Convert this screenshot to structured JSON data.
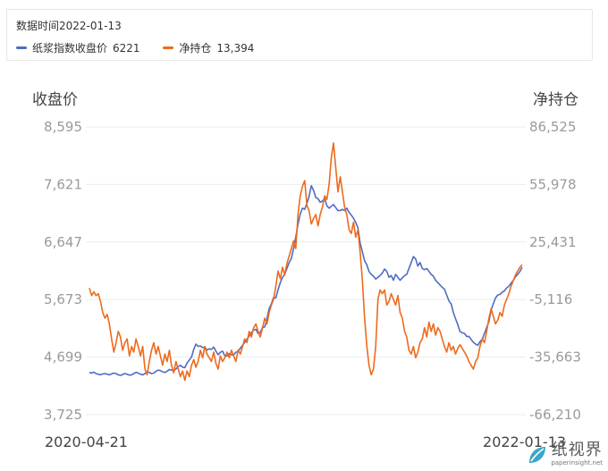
{
  "legend": {
    "date_text": "数据时间2022-01-13",
    "items": [
      {
        "label": "纸浆指数收盘价",
        "value": "6221",
        "color": "#4f6cc2"
      },
      {
        "label": "净持仓",
        "value": "13,394",
        "color": "#ee6a1c"
      }
    ]
  },
  "chart_data": {
    "type": "line",
    "left_axis": {
      "title": "收盘价",
      "ticks": [
        "8,595",
        "7,621",
        "6,647",
        "5,673",
        "4,699",
        "3,725"
      ],
      "min": 3725,
      "max": 8595
    },
    "right_axis": {
      "title": "净持仓",
      "ticks": [
        "86,525",
        "55,978",
        "25,431",
        "-5,116",
        "-35,663",
        "-66,210"
      ],
      "min": -66210,
      "max": 86525
    },
    "x_start_label": "2020-04-21",
    "x_end_label": "2022-01-13",
    "grid": true,
    "series": [
      {
        "name": "纸浆指数收盘价",
        "axis": "left",
        "color": "#4f6cc2",
        "values": [
          4440,
          4430,
          4445,
          4420,
          4410,
          4400,
          4415,
          4420,
          4410,
          4400,
          4415,
          4430,
          4420,
          4400,
          4390,
          4405,
          4420,
          4410,
          4395,
          4400,
          4420,
          4440,
          4430,
          4410,
          4400,
          4420,
          4450,
          4440,
          4420,
          4430,
          4460,
          4480,
          4470,
          4450,
          4440,
          4460,
          4490,
          4480,
          4470,
          4500,
          4540,
          4560,
          4530,
          4520,
          4600,
          4650,
          4700,
          4830,
          4920,
          4880,
          4890,
          4860,
          4870,
          4820,
          4840,
          4830,
          4870,
          4800,
          4740,
          4780,
          4800,
          4720,
          4720,
          4760,
          4740,
          4740,
          4780,
          4800,
          4850,
          4900,
          4950,
          5000,
          5060,
          5110,
          5160,
          5170,
          5100,
          5120,
          5200,
          5210,
          5350,
          5520,
          5600,
          5710,
          5700,
          5840,
          5960,
          6050,
          6100,
          6200,
          6300,
          6370,
          6540,
          6730,
          6950,
          7120,
          7220,
          7200,
          7300,
          7420,
          7600,
          7520,
          7400,
          7380,
          7320,
          7340,
          7380,
          7260,
          7220,
          7250,
          7280,
          7230,
          7180,
          7180,
          7200,
          7180,
          7220,
          7150,
          7100,
          7050,
          6980,
          6890,
          6630,
          6480,
          6330,
          6260,
          6150,
          6100,
          6070,
          6020,
          6050,
          6080,
          6120,
          6190,
          6150,
          6050,
          6080,
          6000,
          6100,
          6050,
          6000,
          6040,
          6080,
          6100,
          6200,
          6300,
          6400,
          6360,
          6240,
          6300,
          6200,
          6180,
          6200,
          6150,
          6100,
          6070,
          6000,
          5960,
          5920,
          5880,
          5850,
          5750,
          5650,
          5600,
          5450,
          5350,
          5250,
          5130,
          5110,
          5100,
          5050,
          5050,
          5000,
          4950,
          4920,
          4900,
          4960,
          5000,
          5100,
          5200,
          5300,
          5500,
          5600,
          5700,
          5750,
          5760,
          5800,
          5820,
          5870,
          5900,
          5950,
          6000,
          6060,
          6100,
          6150,
          6221
        ]
      },
      {
        "name": "净持仓",
        "axis": "right",
        "color": "#ee6a1c",
        "values": [
          1000,
          -3000,
          -1000,
          -3000,
          -2000,
          -6000,
          -12000,
          -15000,
          -13000,
          -18000,
          -26000,
          -33000,
          -28000,
          -22000,
          -25000,
          -32000,
          -28000,
          -26000,
          -35000,
          -30000,
          -33000,
          -26000,
          -30000,
          -35000,
          -30000,
          -42000,
          -45000,
          -38000,
          -32000,
          -28000,
          -34000,
          -30000,
          -35000,
          -40000,
          -34000,
          -38000,
          -32000,
          -40000,
          -44000,
          -38000,
          -42000,
          -46000,
          -43000,
          -48000,
          -43000,
          -46000,
          -40000,
          -37000,
          -41000,
          -38000,
          -32000,
          -36000,
          -30000,
          -34000,
          -36000,
          -38000,
          -33000,
          -39000,
          -42000,
          -35000,
          -38000,
          -36000,
          -33000,
          -36000,
          -32000,
          -35000,
          -38000,
          -32000,
          -34000,
          -30000,
          -26000,
          -28000,
          -22000,
          -25000,
          -20000,
          -18000,
          -22000,
          -25000,
          -20000,
          -15000,
          -18000,
          -12000,
          -8000,
          -5000,
          2000,
          10000,
          6000,
          12000,
          8000,
          14000,
          18000,
          22000,
          26000,
          22000,
          40000,
          50000,
          55000,
          58000,
          45000,
          42000,
          35000,
          38000,
          40000,
          34000,
          40000,
          44000,
          50000,
          48000,
          56000,
          70000,
          78000,
          65000,
          52000,
          60000,
          52000,
          44000,
          40000,
          32000,
          30000,
          36000,
          28000,
          32000,
          20000,
          5000,
          -15000,
          -30000,
          -40000,
          -45000,
          -42000,
          -30000,
          -5000,
          0,
          -2000,
          0,
          -8000,
          -6000,
          -2000,
          -5000,
          -8000,
          -3000,
          -12000,
          -15000,
          -22000,
          -25000,
          -32000,
          -34000,
          -30000,
          -36000,
          -33000,
          -28000,
          -26000,
          -20000,
          -25000,
          -17000,
          -22000,
          -18000,
          -24000,
          -20000,
          -22000,
          -26000,
          -30000,
          -33000,
          -28000,
          -32000,
          -30000,
          -34000,
          -31000,
          -29000,
          -31000,
          -33000,
          -35000,
          -38000,
          -40000,
          -42000,
          -38000,
          -36000,
          -30000,
          -26000,
          -28000,
          -22000,
          -15000,
          -10000,
          -14000,
          -18000,
          -16000,
          -12000,
          -14000,
          -8000,
          -5000,
          -2000,
          2000,
          5000,
          8000,
          10000,
          12000,
          13394
        ]
      }
    ]
  },
  "watermark": {
    "title": "纸视界",
    "url": "paperinsight.net"
  }
}
